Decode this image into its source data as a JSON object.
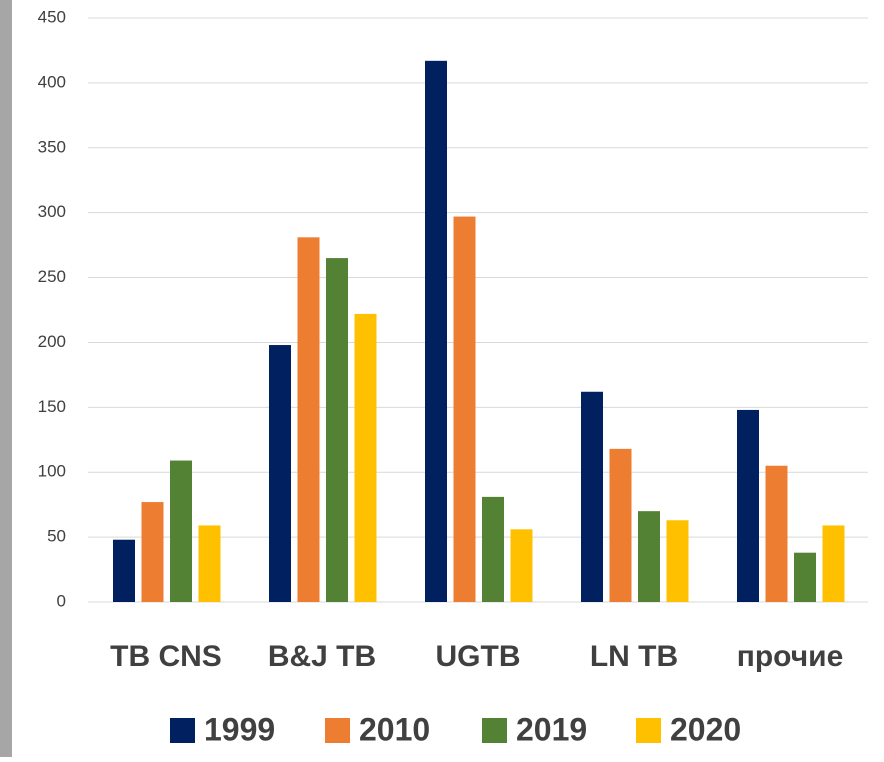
{
  "chart_data": {
    "type": "bar",
    "categories": [
      "TB CNS",
      "B&J TB",
      "UGTB",
      "LN TB",
      "прочие"
    ],
    "series": [
      {
        "name": "1999",
        "color": "#002060",
        "values": [
          48,
          198,
          417,
          162,
          148
        ]
      },
      {
        "name": "2010",
        "color": "#ED7D31",
        "values": [
          77,
          281,
          297,
          118,
          105
        ]
      },
      {
        "name": "2019",
        "color": "#548235",
        "values": [
          109,
          265,
          81,
          70,
          38
        ]
      },
      {
        "name": "2020",
        "color": "#FFC000",
        "values": [
          59,
          222,
          56,
          63,
          59
        ]
      }
    ],
    "ylim": [
      0,
      450
    ],
    "yticks": [
      0,
      50,
      100,
      150,
      200,
      250,
      300,
      350,
      400,
      450
    ],
    "grid": true,
    "legend": "bottom"
  }
}
